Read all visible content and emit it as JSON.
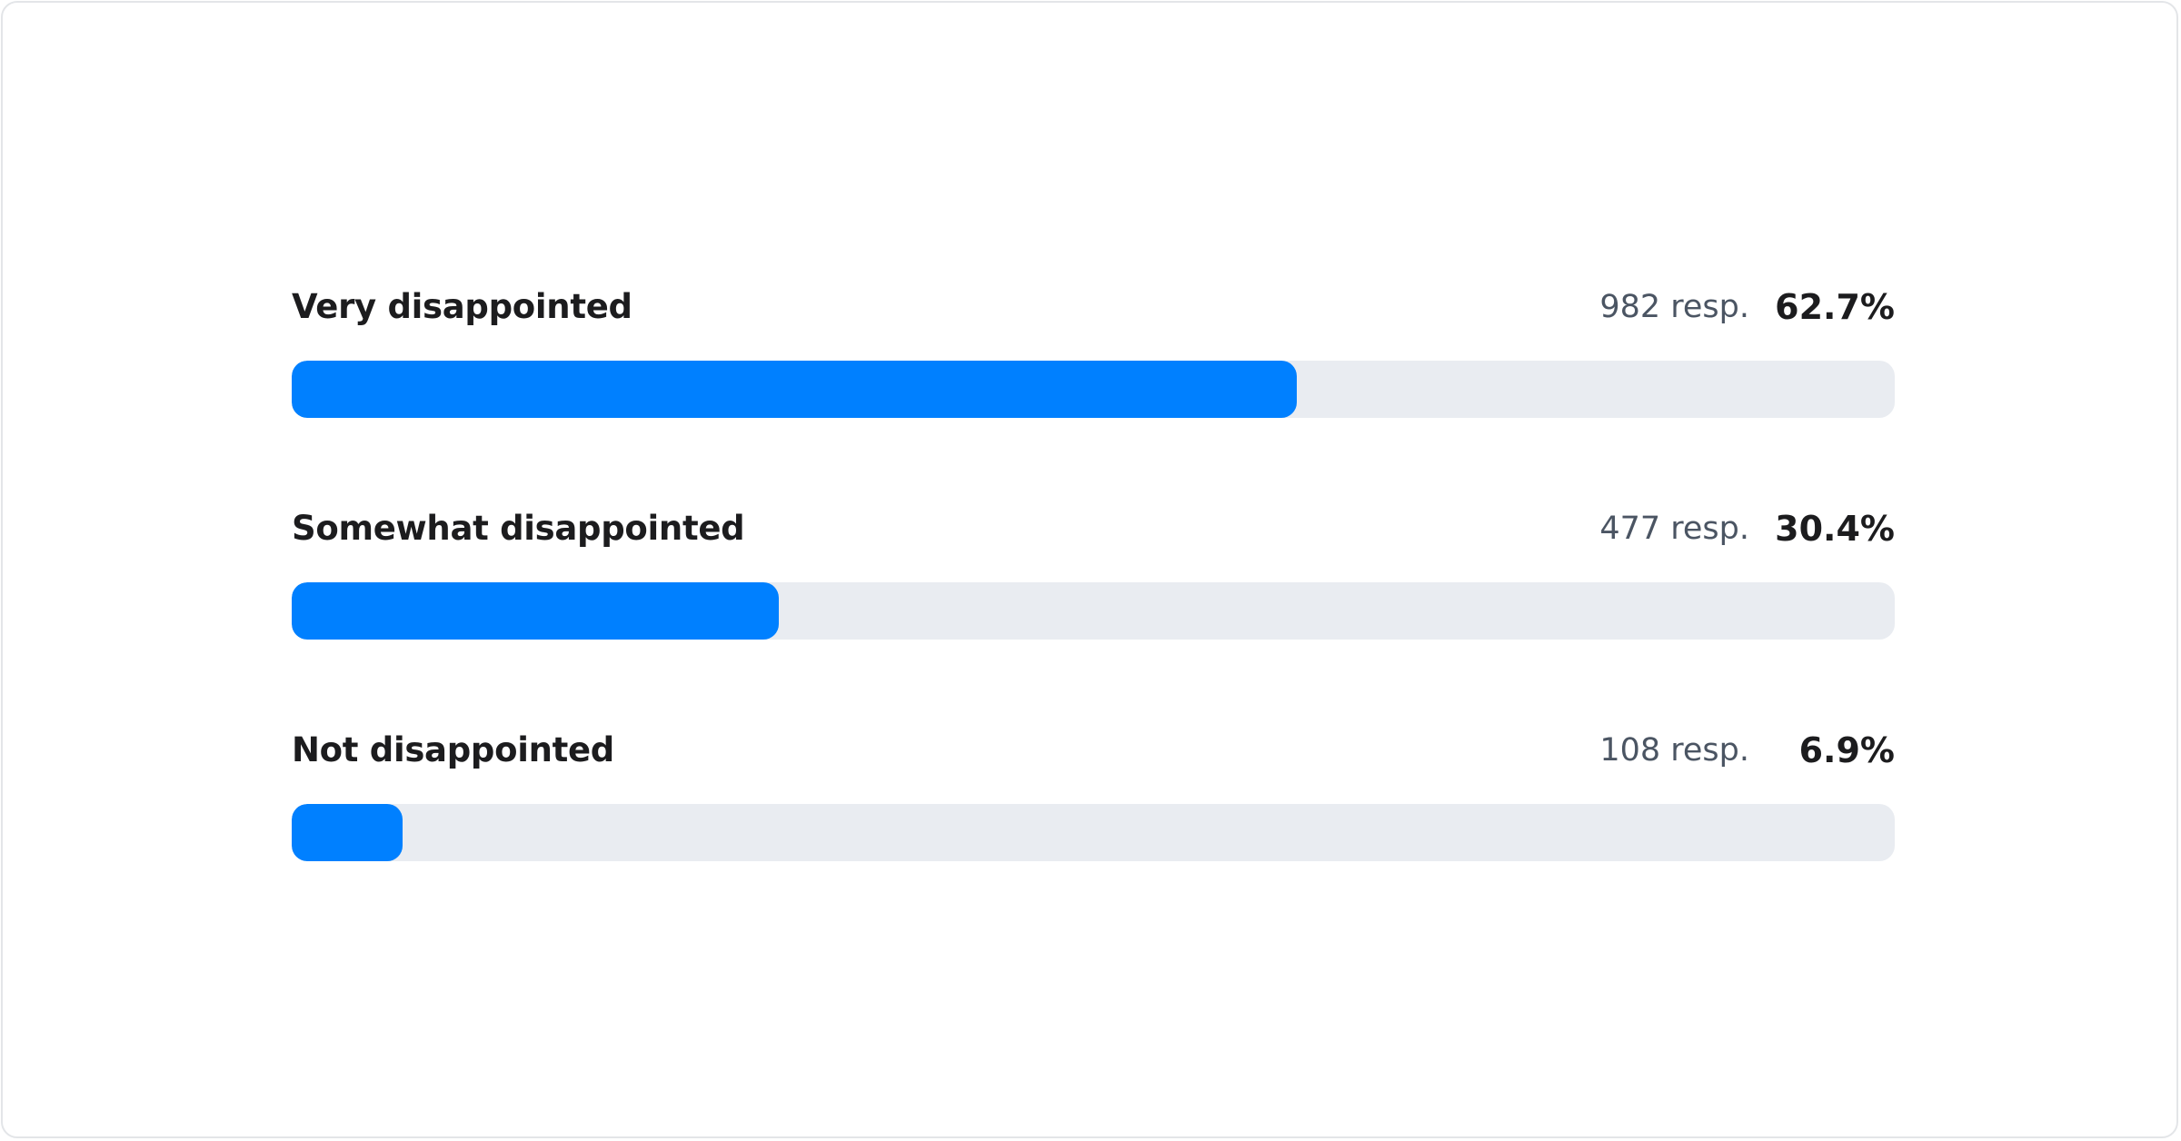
{
  "colors": {
    "fill": "#0080ff",
    "track": "#e9ecf1",
    "label": "#1c1c1e",
    "count": "#4b5563"
  },
  "rows": [
    {
      "label": "Very disappointed",
      "count": "982 resp.",
      "percent_text": "62.7%",
      "percent": 62.7
    },
    {
      "label": "Somewhat disappointed",
      "count": "477 resp.",
      "percent_text": "30.4%",
      "percent": 30.4
    },
    {
      "label": "Not disappointed",
      "count": "108 resp.",
      "percent_text": "6.9%",
      "percent": 6.9
    }
  ]
}
